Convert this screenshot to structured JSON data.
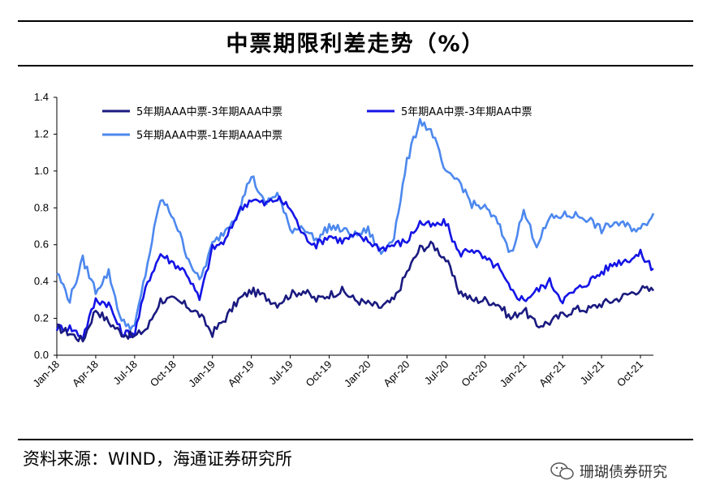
{
  "title": "中票期限利差走势（%）",
  "source": "资料来源：WIND，海通证券研究所",
  "watermark": "珊瑚债券研究",
  "colors": {
    "series1": "#1a1a80",
    "series2": "#1414e6",
    "series3": "#4d88ee",
    "axis": "#000000"
  },
  "chart_data": {
    "type": "line",
    "title": "中票期限利差走势（%）",
    "xlabel": "",
    "ylabel": "",
    "ylim": [
      0,
      1.4
    ],
    "yticks": [
      "0.0",
      "0.2",
      "0.4",
      "0.6",
      "0.8",
      "1.0",
      "1.2",
      "1.4"
    ],
    "xticks": [
      "Jan-18",
      "Apr-18",
      "Jul-18",
      "Oct-18",
      "Jan-19",
      "Apr-19",
      "Jul-19",
      "Oct-19",
      "Jan-20",
      "Apr-20",
      "Jul-20",
      "Oct-20",
      "Jan-21",
      "Apr-21",
      "Jul-21",
      "Oct-21"
    ],
    "x_months": [
      "2018-01",
      "2018-02",
      "2018-03",
      "2018-04",
      "2018-05",
      "2018-06",
      "2018-07",
      "2018-08",
      "2018-09",
      "2018-10",
      "2018-11",
      "2018-12",
      "2019-01",
      "2019-02",
      "2019-03",
      "2019-04",
      "2019-05",
      "2019-06",
      "2019-07",
      "2019-08",
      "2019-09",
      "2019-10",
      "2019-11",
      "2019-12",
      "2020-01",
      "2020-02",
      "2020-03",
      "2020-04",
      "2020-05",
      "2020-06",
      "2020-07",
      "2020-08",
      "2020-09",
      "2020-10",
      "2020-11",
      "2020-12",
      "2021-01",
      "2021-02",
      "2021-03",
      "2021-04",
      "2021-05",
      "2021-06",
      "2021-07",
      "2021-08",
      "2021-09",
      "2021-10",
      "2021-11"
    ],
    "series": [
      {
        "name": "5年期AAA中票-3年期AAA中票",
        "legend": "5年期AAA中票-3年期AAA中票",
        "values": [
          0.15,
          0.12,
          0.08,
          0.25,
          0.18,
          0.12,
          0.1,
          0.15,
          0.3,
          0.3,
          0.27,
          0.22,
          0.12,
          0.2,
          0.3,
          0.35,
          0.32,
          0.28,
          0.33,
          0.35,
          0.3,
          0.33,
          0.35,
          0.3,
          0.28,
          0.26,
          0.3,
          0.45,
          0.58,
          0.6,
          0.52,
          0.35,
          0.3,
          0.3,
          0.28,
          0.2,
          0.25,
          0.16,
          0.18,
          0.22,
          0.25,
          0.25,
          0.28,
          0.3,
          0.33,
          0.36,
          0.35
        ]
      },
      {
        "name": "5年期AA中票-3年期AA中票",
        "legend": "5年期AA中票-3年期AA中票",
        "values": [
          0.15,
          0.15,
          0.1,
          0.3,
          0.28,
          0.12,
          0.12,
          0.4,
          0.55,
          0.5,
          0.45,
          0.3,
          0.58,
          0.62,
          0.78,
          0.85,
          0.82,
          0.85,
          0.8,
          0.65,
          0.6,
          0.65,
          0.62,
          0.65,
          0.62,
          0.58,
          0.6,
          0.62,
          0.72,
          0.7,
          0.72,
          0.55,
          0.58,
          0.52,
          0.48,
          0.35,
          0.3,
          0.35,
          0.4,
          0.3,
          0.35,
          0.4,
          0.45,
          0.5,
          0.52,
          0.55,
          0.47
        ]
      },
      {
        "name": "5年期AAA中票-1年期AAA中票",
        "legend": "5年期AAA中票-1年期AAA中票",
        "values": [
          0.45,
          0.3,
          0.52,
          0.35,
          0.45,
          0.18,
          0.15,
          0.5,
          0.85,
          0.75,
          0.55,
          0.4,
          0.6,
          0.68,
          0.78,
          0.98,
          0.82,
          0.88,
          0.68,
          0.7,
          0.62,
          0.7,
          0.68,
          0.65,
          0.68,
          0.55,
          0.65,
          1.05,
          1.28,
          1.2,
          0.98,
          0.95,
          0.82,
          0.8,
          0.72,
          0.55,
          0.78,
          0.6,
          0.74,
          0.76,
          0.76,
          0.74,
          0.68,
          0.72,
          0.7,
          0.68,
          0.77
        ]
      }
    ]
  }
}
